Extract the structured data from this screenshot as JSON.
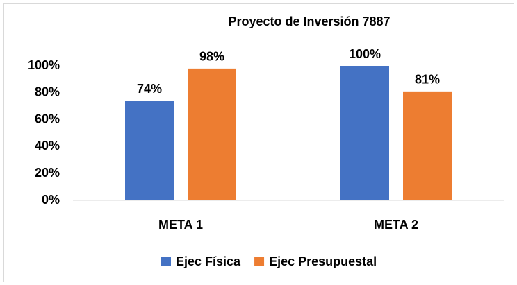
{
  "chart_data": {
    "type": "bar",
    "title": "Proyecto de Inversión 7887",
    "categories": [
      "META 1",
      "META 2"
    ],
    "series": [
      {
        "name": "Ejec Física",
        "color": "#4472c4",
        "values": [
          74,
          100
        ],
        "value_labels": [
          "74%",
          "100%"
        ]
      },
      {
        "name": "Ejec Presupuestal",
        "color": "#ed7d31",
        "values": [
          98,
          81
        ],
        "value_labels": [
          "98%",
          "81%"
        ]
      }
    ],
    "ylim": [
      0,
      100
    ],
    "yticks": [
      {
        "value": 0,
        "label": "0%"
      },
      {
        "value": 20,
        "label": "20%"
      },
      {
        "value": 40,
        "label": "40%"
      },
      {
        "value": 60,
        "label": "60%"
      },
      {
        "value": 80,
        "label": "80%"
      },
      {
        "value": 100,
        "label": "100%"
      }
    ],
    "grid": false,
    "legend": "bottom"
  }
}
